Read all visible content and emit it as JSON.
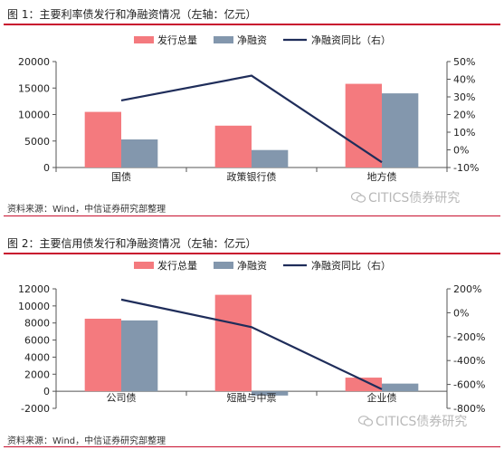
{
  "colors": {
    "accent_red": "#c8102e",
    "bar_total": "#f47a7e",
    "bar_net": "#8397ad",
    "line": "#1f2d5a",
    "watermark": "#b8b8b8"
  },
  "watermark_text": "CITICS债券研究",
  "watermark_icon": "wechat-icon",
  "source_text": "资料来源：Wind，中信证券研究部整理",
  "chart_data": [
    {
      "type": "bar",
      "title": "图 1：主要利率债发行和净融资情况（左轴：亿元）",
      "categories": [
        "国债",
        "政策银行债",
        "地方债"
      ],
      "series": [
        {
          "name": "发行总量",
          "kind": "bar",
          "axis": "left",
          "values": [
            10500,
            7900,
            15800
          ]
        },
        {
          "name": "净融资",
          "kind": "bar",
          "axis": "left",
          "values": [
            5300,
            3300,
            14000
          ]
        },
        {
          "name": "净融资同比（右）",
          "kind": "line",
          "axis": "right",
          "values": [
            28,
            42,
            -7
          ]
        }
      ],
      "left_axis": {
        "ylim": [
          0,
          20000
        ],
        "ticks": [
          0,
          5000,
          10000,
          15000,
          20000
        ]
      },
      "right_axis": {
        "ylim": [
          -10,
          50
        ],
        "ticks": [
          -10,
          0,
          10,
          20,
          30,
          40,
          50
        ],
        "unit": "%"
      },
      "legend_position": "top",
      "grid": false
    },
    {
      "type": "bar",
      "title": "图 2：主要信用债发行和净融资情况（左轴：亿元）",
      "categories": [
        "公司债",
        "短融与中票",
        "企业债"
      ],
      "series": [
        {
          "name": "发行总量",
          "kind": "bar",
          "axis": "left",
          "values": [
            8500,
            11300,
            1600
          ]
        },
        {
          "name": "净融资",
          "kind": "bar",
          "axis": "left",
          "values": [
            8300,
            -500,
            900
          ]
        },
        {
          "name": "净融资同比（右）",
          "kind": "line",
          "axis": "right",
          "values": [
            110,
            -120,
            -640
          ]
        }
      ],
      "left_axis": {
        "ylim": [
          -2000,
          12000
        ],
        "ticks": [
          -2000,
          0,
          2000,
          4000,
          6000,
          8000,
          10000,
          12000
        ]
      },
      "right_axis": {
        "ylim": [
          -800,
          200
        ],
        "ticks": [
          -800,
          -600,
          -400,
          -200,
          0,
          200
        ],
        "unit": "%"
      },
      "legend_position": "top",
      "grid": false
    }
  ]
}
